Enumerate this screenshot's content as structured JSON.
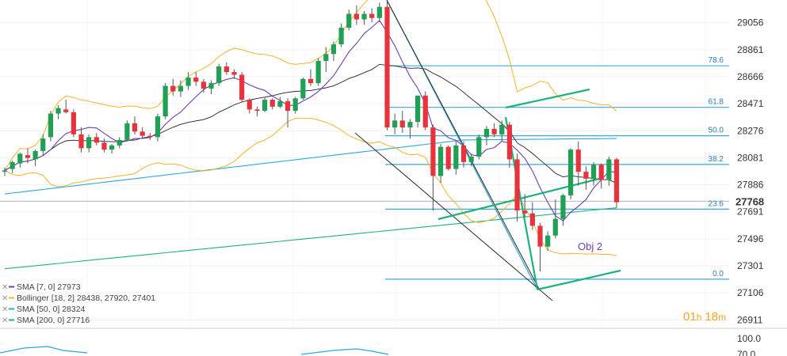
{
  "chart_data": {
    "type": "candlestick",
    "y_axis": {
      "ticks": [
        29056,
        28861,
        28666,
        28471,
        28276,
        28081,
        27886,
        27691,
        27496,
        27301,
        27106,
        26911
      ],
      "range": [
        26850,
        29220
      ],
      "last_price": "27768",
      "last_price_value": 27768
    },
    "candles": [
      [
        27980,
        28010,
        27950,
        27990
      ],
      [
        28000,
        28060,
        27970,
        28050
      ],
      [
        28040,
        28120,
        28010,
        28110
      ],
      [
        28100,
        28150,
        28040,
        28080
      ],
      [
        28070,
        28140,
        28020,
        28130
      ],
      [
        28130,
        28250,
        28100,
        28220
      ],
      [
        28230,
        28420,
        28200,
        28400
      ],
      [
        28400,
        28460,
        28360,
        28440
      ],
      [
        28430,
        28500,
        28400,
        28410
      ],
      [
        28410,
        28430,
        28230,
        28250
      ],
      [
        28250,
        28300,
        28120,
        28150
      ],
      [
        28150,
        28250,
        28120,
        28230
      ],
      [
        28230,
        28260,
        28170,
        28190
      ],
      [
        28190,
        28220,
        28120,
        28140
      ],
      [
        28140,
        28180,
        28110,
        28170
      ],
      [
        28170,
        28230,
        28150,
        28210
      ],
      [
        28210,
        28350,
        28200,
        28330
      ],
      [
        28330,
        28380,
        28250,
        28270
      ],
      [
        28270,
        28300,
        28220,
        28240
      ],
      [
        28240,
        28260,
        28210,
        28230
      ],
      [
        28230,
        28400,
        28200,
        28380
      ],
      [
        28380,
        28620,
        28360,
        28600
      ],
      [
        28600,
        28650,
        28530,
        28560
      ],
      [
        28560,
        28640,
        28520,
        28600
      ],
      [
        28600,
        28700,
        28570,
        28660
      ],
      [
        28660,
        28700,
        28600,
        28630
      ],
      [
        28630,
        28650,
        28550,
        28580
      ],
      [
        28580,
        28640,
        28540,
        28620
      ],
      [
        28620,
        28760,
        28600,
        28740
      ],
      [
        28740,
        28770,
        28680,
        28700
      ],
      [
        28700,
        28720,
        28650,
        28680
      ],
      [
        28680,
        28700,
        28480,
        28500
      ],
      [
        28500,
        28510,
        28400,
        28430
      ],
      [
        28430,
        28450,
        28380,
        28420
      ],
      [
        28420,
        28520,
        28410,
        28500
      ],
      [
        28500,
        28510,
        28430,
        28450
      ],
      [
        28450,
        28520,
        28440,
        28490
      ],
      [
        28490,
        28510,
        28300,
        28420
      ],
      [
        28420,
        28520,
        28400,
        28510
      ],
      [
        28510,
        28660,
        28500,
        28650
      ],
      [
        28650,
        28720,
        28600,
        28620
      ],
      [
        28620,
        28800,
        28600,
        28780
      ],
      [
        28780,
        28880,
        28700,
        28830
      ],
      [
        28830,
        28920,
        28780,
        28900
      ],
      [
        28900,
        29050,
        28880,
        29020
      ],
      [
        29020,
        29150,
        29000,
        29120
      ],
      [
        29120,
        29180,
        29040,
        29080
      ],
      [
        29080,
        29140,
        29040,
        29120
      ],
      [
        29120,
        29160,
        29060,
        29090
      ],
      [
        29090,
        29200,
        29060,
        29170
      ],
      [
        29170,
        29210,
        28280,
        28300
      ],
      [
        28300,
        28400,
        28250,
        28350
      ],
      [
        28350,
        28420,
        28260,
        28300
      ],
      [
        28300,
        28360,
        28220,
        28340
      ],
      [
        28340,
        28530,
        28300,
        28530
      ],
      [
        28530,
        28560,
        28280,
        28300
      ],
      [
        28300,
        28320,
        27700,
        27950
      ],
      [
        27950,
        28180,
        27900,
        28160
      ],
      [
        28160,
        28170,
        27990,
        28000
      ],
      [
        28000,
        28200,
        27960,
        28170
      ],
      [
        28170,
        28200,
        28010,
        28050
      ],
      [
        28050,
        28110,
        28020,
        28090
      ],
      [
        28090,
        28250,
        28070,
        28230
      ],
      [
        28230,
        28310,
        28170,
        28290
      ],
      [
        28290,
        28330,
        28230,
        28250
      ],
      [
        28250,
        28350,
        28200,
        28320
      ],
      [
        28320,
        28340,
        28010,
        28070
      ],
      [
        28070,
        28110,
        27620,
        27700
      ],
      [
        27700,
        27820,
        27650,
        27680
      ],
      [
        27680,
        27760,
        27560,
        27590
      ],
      [
        27590,
        27610,
        27260,
        27440
      ],
      [
        27440,
        27550,
        27410,
        27520
      ],
      [
        27520,
        27780,
        27500,
        27640
      ],
      [
        27640,
        27820,
        27590,
        27810
      ],
      [
        27810,
        28150,
        27780,
        28140
      ],
      [
        28140,
        28200,
        27880,
        27980
      ],
      [
        27980,
        28020,
        27850,
        27930
      ],
      [
        27930,
        28050,
        27880,
        28030
      ],
      [
        28030,
        28040,
        27860,
        27920
      ],
      [
        27920,
        28090,
        27880,
        28070
      ],
      [
        28070,
        28080,
        27720,
        27760
      ]
    ],
    "fibonacci": [
      {
        "label": "78.6",
        "value": 28745
      },
      {
        "label": "61.8",
        "value": 28445
      },
      {
        "label": "50.0",
        "value": 28240
      },
      {
        "label": "38.2",
        "value": 28033
      },
      {
        "label": "23.6",
        "value": 27710
      },
      {
        "label": "0.0",
        "value": 27205
      }
    ],
    "indicators": [
      {
        "label": "SMA [7, 0] 27973",
        "color": "#6a3fb5"
      },
      {
        "label": "Bollinger [18, 2] 28438, 27920, 27401",
        "color": "#f0b429"
      },
      {
        "label": "SMA [50, 0] 28324",
        "color": "#29a8e0"
      },
      {
        "label": "SMA [200, 0] 27716",
        "color": "#1fb37a"
      }
    ],
    "sub_panel_ticks": [
      "100.0",
      "70.0"
    ],
    "annotations": {
      "objective": "Obj 2"
    },
    "timer": {
      "hours": "01",
      "h": "h",
      "minutes": "18",
      "m": "m"
    },
    "colors": {
      "up": "#1fa055",
      "down": "#e8333c",
      "fib": "#3ba9d9",
      "pattern": "#1fb37a",
      "trend": "#2b2b2b",
      "sma7": "#6a3fb5",
      "sma50": "#29a8e0",
      "sma200": "#1fb37a",
      "bollinger": "#f0b429",
      "timer": "#f5a623"
    }
  }
}
